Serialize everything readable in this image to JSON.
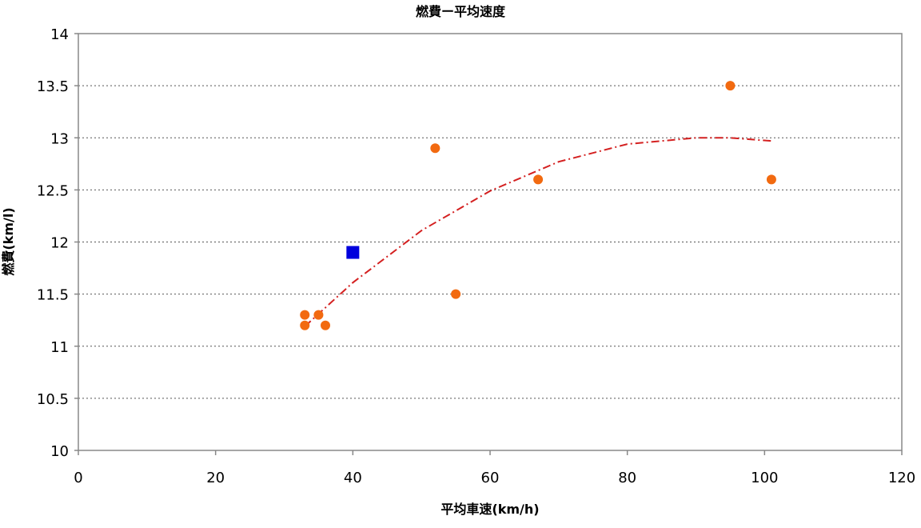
{
  "chart_data": {
    "type": "scatter",
    "title": "燃費ー平均速度",
    "xlabel": "平均車速(km/h)",
    "ylabel": "燃費(km/l)",
    "xlim": [
      0,
      120
    ],
    "ylim": [
      10,
      14
    ],
    "x_ticks": [
      0,
      20,
      40,
      60,
      80,
      100,
      120
    ],
    "y_ticks": [
      10,
      10.5,
      11,
      11.5,
      12,
      12.5,
      13,
      13.5,
      14
    ],
    "x_tick_labels": [
      "0",
      "20",
      "40",
      "60",
      "80",
      "100",
      "120"
    ],
    "y_tick_labels": [
      "10",
      "10.5",
      "11",
      "11.5",
      "12",
      "12.5",
      "13",
      "13.5",
      "14"
    ],
    "grid": "horizontal-dotted",
    "series": [
      {
        "marker": "circle",
        "color": "#f26a10",
        "points": [
          {
            "x": 33,
            "y": 11.3
          },
          {
            "x": 33,
            "y": 11.2
          },
          {
            "x": 35,
            "y": 11.3
          },
          {
            "x": 36,
            "y": 11.2
          },
          {
            "x": 52,
            "y": 12.9
          },
          {
            "x": 55,
            "y": 11.5
          },
          {
            "x": 67,
            "y": 12.6
          },
          {
            "x": 95,
            "y": 13.5
          },
          {
            "x": 101,
            "y": 12.6
          }
        ]
      },
      {
        "marker": "square",
        "color": "#0000dd",
        "points": [
          {
            "x": 40,
            "y": 11.9
          }
        ]
      }
    ],
    "trendline": {
      "type": "polynomial",
      "style": "dash-dot",
      "color": "#d42020",
      "points": [
        {
          "x": 33,
          "y": 11.19
        },
        {
          "x": 40,
          "y": 11.61
        },
        {
          "x": 50,
          "y": 12.11
        },
        {
          "x": 60,
          "y": 12.49
        },
        {
          "x": 70,
          "y": 12.77
        },
        {
          "x": 80,
          "y": 12.94
        },
        {
          "x": 90,
          "y": 13.0
        },
        {
          "x": 95,
          "y": 13.0
        },
        {
          "x": 101,
          "y": 12.97
        }
      ]
    }
  }
}
